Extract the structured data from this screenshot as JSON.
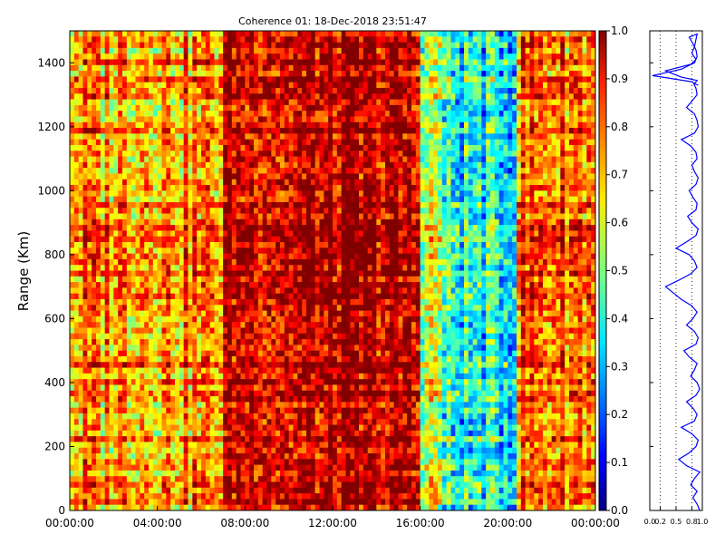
{
  "chart_data": [
    {
      "type": "heatmap",
      "title": "Coherence 01: 18-Dec-2018 23:51:47",
      "xlabel": "",
      "ylabel": "Range (Km)",
      "x_ticks": [
        "00:00:00",
        "04:00:00",
        "08:00:00",
        "12:00:00",
        "16:00:00",
        "20:00:00",
        "00:00:00"
      ],
      "y_ticks": [
        "0",
        "200",
        "400",
        "600",
        "800",
        "1000",
        "1200",
        "1400"
      ],
      "xlim_hours": [
        0,
        24
      ],
      "ylim": [
        0,
        1500
      ],
      "colorbar": {
        "colormap": "jet",
        "range": [
          0.0,
          1.0
        ],
        "ticks": [
          "0.0",
          "0.1",
          "0.2",
          "0.3",
          "0.4",
          "0.5",
          "0.6",
          "0.7",
          "0.8",
          "0.9",
          "1.0"
        ]
      },
      "description_regions": [
        {
          "x_hours": [
            0,
            7
          ],
          "coherence_level": "mixed 0.5-1.0"
        },
        {
          "x_hours": [
            7,
            16
          ],
          "coherence_level": "mostly 0.9-1.0"
        },
        {
          "x_hours": [
            16,
            20.5
          ],
          "coherence_level": "low 0.2-0.6"
        },
        {
          "x_hours": [
            20.5,
            24
          ],
          "coherence_level": "mixed 0.6-1.0"
        }
      ]
    },
    {
      "type": "line",
      "title": "",
      "x_ticks": [
        "0.0",
        "0.2",
        "0.5",
        "0.8",
        "1.0"
      ],
      "xlim": [
        0,
        1
      ],
      "ylim": [
        0,
        1500
      ],
      "line_color": "#0000ff",
      "grid": "dotted vertical",
      "series": [
        {
          "x": [
            0.95,
            0.9,
            0.82,
            0.9,
            0.78,
            0.85,
            0.95,
            0.7,
            0.55,
            0.75,
            0.88,
            0.92,
            0.8,
            0.6,
            0.85,
            0.9,
            0.82,
            0.7,
            0.88,
            0.95,
            0.9,
            0.78,
            0.85,
            0.9,
            0.75,
            0.65,
            0.88,
            0.92,
            0.85,
            0.7,
            0.82,
            0.9,
            0.8,
            0.6,
            0.45,
            0.3,
            0.55,
            0.78,
            0.9,
            0.85,
            0.75,
            0.5,
            0.7,
            0.88,
            0.92,
            0.8,
            0.72,
            0.88,
            0.9,
            0.82,
            0.75,
            0.88,
            0.92,
            0.85,
            0.8,
            0.9,
            0.88,
            0.78,
            0.6,
            0.85,
            0.92,
            0.9,
            0.85,
            0.7,
            0.8,
            0.9,
            0.88,
            0.82,
            0.05,
            0.6,
            0.85,
            0.9,
            0.88,
            0.82,
            0.75,
            0.9,
            0.85,
            0.8,
            0.88,
            0.78,
            0.3,
            0.6,
            0.9,
            0.85,
            0.92
          ],
          "y": [
            0,
            20,
            40,
            60,
            80,
            100,
            120,
            140,
            160,
            180,
            200,
            220,
            240,
            260,
            280,
            300,
            320,
            340,
            360,
            380,
            400,
            420,
            440,
            460,
            480,
            500,
            520,
            540,
            560,
            580,
            600,
            620,
            640,
            660,
            680,
            700,
            720,
            740,
            760,
            780,
            800,
            820,
            840,
            860,
            880,
            900,
            920,
            940,
            960,
            980,
            1000,
            1020,
            1040,
            1060,
            1080,
            1100,
            1120,
            1140,
            1160,
            1180,
            1200,
            1220,
            1240,
            1260,
            1280,
            1300,
            1320,
            1340,
            1360,
            1380,
            1400,
            1420,
            1440,
            1460,
            1480,
            1490,
            1450,
            1430,
            1410,
            1395,
            1375,
            1355,
            1345,
            1335,
            1330
          ]
        }
      ]
    }
  ]
}
